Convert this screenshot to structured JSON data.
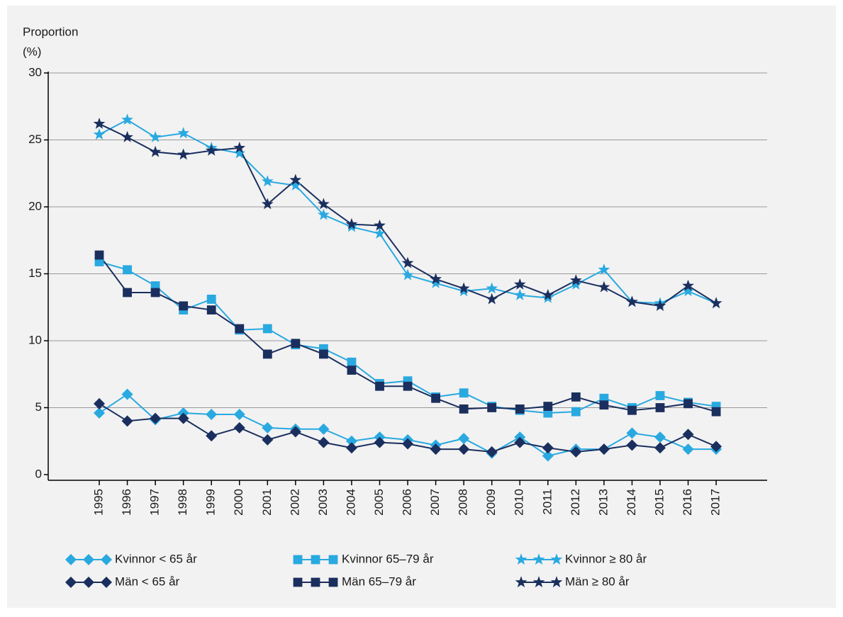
{
  "chart_data": {
    "type": "line",
    "ylabel": "Proportion",
    "yunit": "(%)",
    "categories": [
      "1995",
      "1996",
      "1997",
      "1998",
      "1999",
      "2000",
      "2001",
      "2002",
      "2003",
      "2004",
      "2005",
      "2006",
      "2007",
      "2008",
      "2009",
      "2010",
      "2011",
      "2012",
      "2013",
      "2014",
      "2015",
      "2016",
      "2017"
    ],
    "ylim": [
      0,
      30
    ],
    "yticks": [
      0,
      5,
      10,
      15,
      20,
      25,
      30
    ],
    "grid": true,
    "legend": "bottom",
    "series": [
      {
        "name": "Kvinnor < 65 år",
        "color": "#29a9e0",
        "marker": "diamond",
        "values": [
          4.6,
          6.0,
          4.1,
          4.6,
          4.5,
          4.5,
          3.5,
          3.4,
          3.4,
          2.5,
          2.8,
          2.6,
          2.2,
          2.7,
          1.6,
          2.8,
          1.4,
          1.9,
          1.9,
          3.1,
          2.8,
          1.9,
          1.9
        ]
      },
      {
        "name": "Män < 65 år",
        "color": "#1b2f5e",
        "marker": "diamond",
        "values": [
          5.3,
          4.0,
          4.2,
          4.2,
          2.9,
          3.5,
          2.6,
          3.2,
          2.4,
          2.0,
          2.4,
          2.3,
          1.9,
          1.9,
          1.7,
          2.4,
          2.0,
          1.7,
          1.9,
          2.2,
          2.0,
          3.0,
          2.1
        ]
      },
      {
        "name": "Kvinnor 65–79 år",
        "color": "#29a9e0",
        "marker": "square",
        "values": [
          15.9,
          15.3,
          14.1,
          12.3,
          13.1,
          10.8,
          10.9,
          9.7,
          9.4,
          8.4,
          6.8,
          7.0,
          5.8,
          6.1,
          5.1,
          4.8,
          4.6,
          4.7,
          5.7,
          5.0,
          5.9,
          5.4,
          5.1
        ]
      },
      {
        "name": "Män 65–79 år",
        "color": "#1b2f5e",
        "marker": "square",
        "values": [
          16.4,
          13.6,
          13.6,
          12.6,
          12.3,
          10.9,
          9.0,
          9.8,
          9.0,
          7.8,
          6.6,
          6.6,
          5.7,
          4.9,
          5.0,
          4.9,
          5.1,
          5.8,
          5.2,
          4.8,
          5.0,
          5.3,
          4.7
        ]
      },
      {
        "name": "Kvinnor ≥ 80 år",
        "color": "#29a9e0",
        "marker": "star",
        "values": [
          25.4,
          26.5,
          25.2,
          25.5,
          24.4,
          24.0,
          21.9,
          21.6,
          19.4,
          18.5,
          18.0,
          14.9,
          14.3,
          13.7,
          13.9,
          13.4,
          13.2,
          14.2,
          15.3,
          12.9,
          12.8,
          13.7,
          12.8
        ]
      },
      {
        "name": "Män ≥ 80 år",
        "color": "#1b2f5e",
        "marker": "star",
        "values": [
          26.2,
          25.2,
          24.1,
          23.9,
          24.2,
          24.4,
          20.2,
          22.0,
          20.2,
          18.7,
          18.6,
          15.8,
          14.6,
          13.9,
          13.1,
          14.2,
          13.4,
          14.5,
          14.0,
          12.9,
          12.6,
          14.1,
          12.8
        ]
      }
    ]
  }
}
